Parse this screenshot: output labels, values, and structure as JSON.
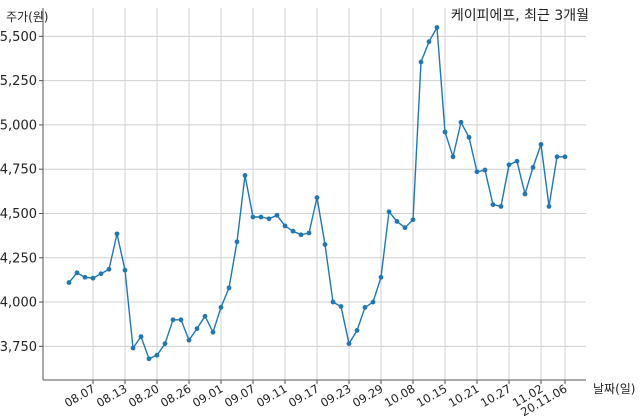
{
  "chart_data": {
    "type": "line",
    "title": "케이피에프, 최근 3개월",
    "ylabel": "주가(원)",
    "xlabel": "날짜(일)",
    "color": "#1f77b4",
    "grid": true,
    "ylim": [
      3560,
      5660
    ],
    "yticks": [
      3750,
      4000,
      4250,
      4500,
      4750,
      5000,
      5250,
      5500
    ],
    "ytick_labels": [
      "3,750",
      "4,000",
      "4,250",
      "4,500",
      "4,750",
      "5,000",
      "5,250",
      "5,500"
    ],
    "xtick_labels": [
      "08.07",
      "08.13",
      "08.20",
      "08.26",
      "09.01",
      "09.07",
      "09.11",
      "09.17",
      "09.23",
      "09.29",
      "10.08",
      "10.15",
      "10.21",
      "10.27",
      "11.02",
      "20.11.06"
    ],
    "xtick_index": [
      3,
      7,
      11,
      15,
      19,
      23,
      27,
      31,
      35,
      39,
      43,
      47,
      51,
      55,
      59,
      62
    ],
    "values": [
      4110,
      4165,
      4140,
      4135,
      4160,
      4185,
      4385,
      4180,
      3740,
      3805,
      3680,
      3700,
      3765,
      3900,
      3900,
      3785,
      3850,
      3920,
      3830,
      3970,
      4080,
      4340,
      4715,
      4480,
      4480,
      4470,
      4490,
      4430,
      4400,
      4380,
      4390,
      4590,
      4325,
      4000,
      3975,
      3765,
      3840,
      3970,
      4000,
      4140,
      4510,
      4455,
      4420,
      4465,
      5355,
      5470,
      5550,
      4960,
      4820,
      5015,
      4930,
      4735,
      4745,
      4550,
      4540,
      4775,
      4795,
      4610,
      4760,
      4890,
      4540,
      4820,
      4820
    ]
  }
}
